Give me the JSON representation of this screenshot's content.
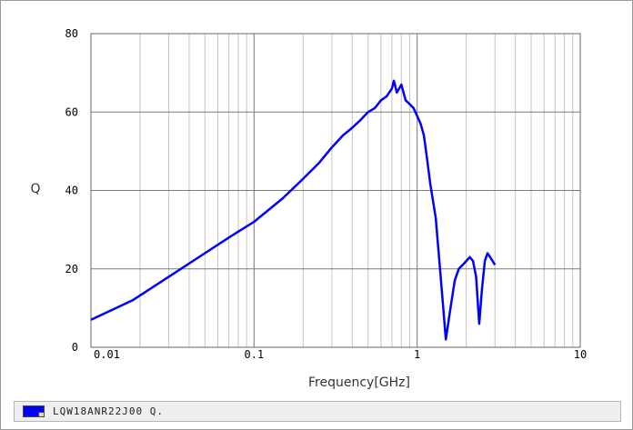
{
  "chart_data": {
    "type": "line",
    "title": "",
    "xlabel": "Frequency[GHz]",
    "ylabel": "Q",
    "x_scale": "log",
    "xlim": [
      0.01,
      10
    ],
    "ylim": [
      0,
      80
    ],
    "x_ticks": [
      "0.01",
      "0.1",
      "1",
      "10"
    ],
    "y_ticks": [
      "0",
      "20",
      "40",
      "60",
      "80"
    ],
    "grid": true,
    "legend_position": "bottom",
    "series": [
      {
        "name": "LQW18ANR22J00 Q.",
        "color": "#0000ff",
        "x": [
          0.01,
          0.018,
          0.03,
          0.05,
          0.07,
          0.1,
          0.15,
          0.2,
          0.25,
          0.3,
          0.35,
          0.4,
          0.45,
          0.5,
          0.55,
          0.6,
          0.65,
          0.7,
          0.72,
          0.75,
          0.8,
          0.85,
          0.9,
          0.95,
          1.0,
          1.05,
          1.1,
          1.15,
          1.2,
          1.3,
          1.4,
          1.5,
          1.6,
          1.7,
          1.8,
          1.9,
          2.0,
          2.1,
          2.2,
          2.3,
          2.4,
          2.5,
          2.6,
          2.7,
          2.8,
          2.9,
          3.0
        ],
        "y": [
          7,
          12,
          18,
          24,
          28,
          32,
          38,
          43,
          47,
          51,
          54,
          56,
          58,
          60,
          61,
          63,
          64,
          66,
          68,
          65,
          67,
          63,
          62,
          61,
          59,
          57,
          54,
          48,
          42,
          33,
          17,
          2,
          10,
          17,
          20,
          21,
          22,
          23,
          22,
          18,
          6,
          15,
          22,
          24,
          23,
          22,
          21
        ]
      }
    ]
  }
}
